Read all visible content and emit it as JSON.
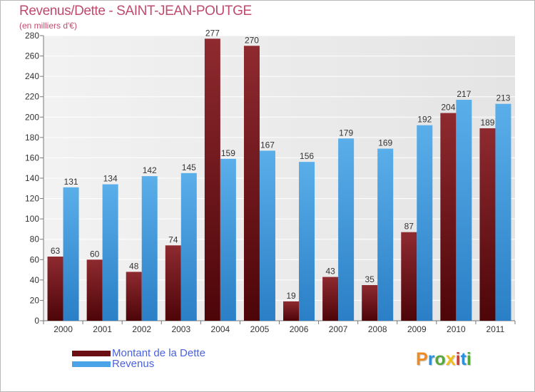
{
  "header": {
    "title": "Revenus/Dette - SAINT-JEAN-POUTGE",
    "subtitle": "(en milliers d'€)"
  },
  "legend": [
    {
      "label": "Montant de la Dette",
      "color": "#6b0f13"
    },
    {
      "label": "Revenus",
      "color": "#4aa3e6"
    }
  ],
  "brand": {
    "name": "Proxiti",
    "letters": [
      {
        "char": "P",
        "color": "#f08a1e"
      },
      {
        "char": "r",
        "color": "#2f8fd8"
      },
      {
        "char": "o",
        "color": "#56a83a"
      },
      {
        "char": "x",
        "color": "#f0c020"
      },
      {
        "char": "i",
        "color": "#d03a2e"
      },
      {
        "char": "t",
        "color": "#2f8fd8"
      },
      {
        "char": "i",
        "color": "#56a83a"
      }
    ]
  },
  "chart_data": {
    "type": "bar",
    "title": "Revenus/Dette - SAINT-JEAN-POUTGE",
    "subtitle": "(en milliers d'€)",
    "categories": [
      "2000",
      "2001",
      "2002",
      "2003",
      "2004",
      "2005",
      "2006",
      "2007",
      "2008",
      "2009",
      "2010",
      "2011"
    ],
    "series": [
      {
        "name": "Montant de la Dette",
        "color": "#6b0f13",
        "values": [
          63,
          60,
          48,
          74,
          277,
          270,
          19,
          43,
          35,
          87,
          204,
          189
        ]
      },
      {
        "name": "Revenus",
        "color": "#4aa3e6",
        "values": [
          131,
          134,
          142,
          145,
          159,
          167,
          156,
          179,
          169,
          192,
          217,
          213
        ]
      }
    ],
    "ylim": [
      0,
      280
    ],
    "yticks": [
      0,
      20,
      40,
      60,
      80,
      100,
      120,
      140,
      160,
      180,
      200,
      220,
      240,
      260,
      280
    ],
    "grid": true,
    "legend_position": "bottom-left",
    "data_labels": true
  }
}
